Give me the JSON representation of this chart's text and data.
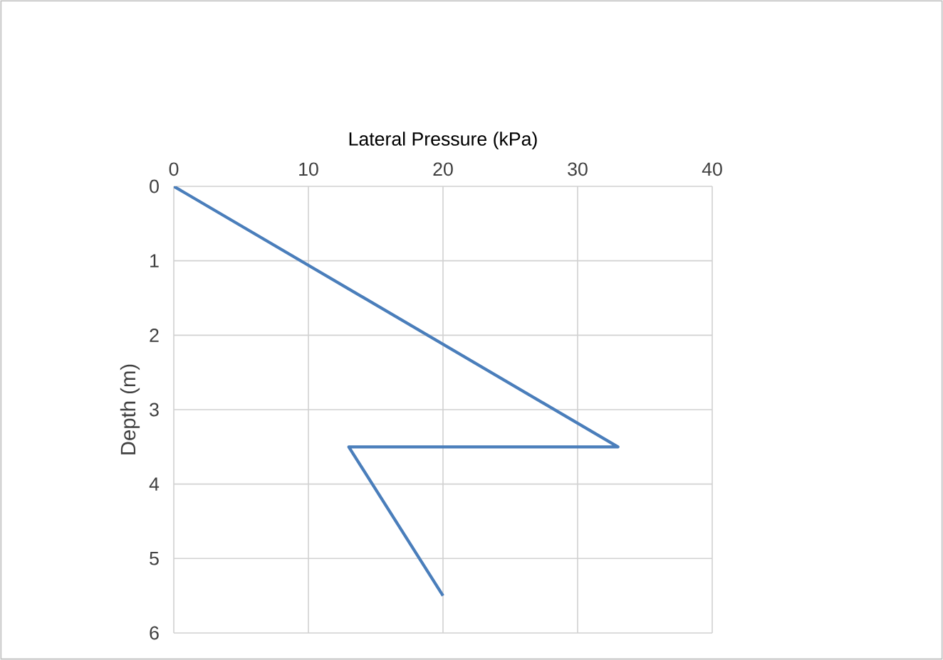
{
  "chart_data": {
    "type": "line",
    "xlabel": "Lateral Pressure (kPa)",
    "ylabel": "Depth (m)",
    "series": [
      {
        "color": "#4a7ebb",
        "x": [
          0,
          33,
          13,
          20
        ],
        "values": [
          0,
          3.5,
          3.5,
          5.5
        ]
      }
    ],
    "xlim": [
      0,
      40
    ],
    "xticks": [
      0,
      10,
      20,
      30,
      40
    ],
    "ylim": [
      6,
      0
    ],
    "yticks": [
      0,
      1,
      2,
      3,
      4,
      5,
      6
    ],
    "grid": true,
    "marker": "none",
    "line_style": "solid"
  }
}
